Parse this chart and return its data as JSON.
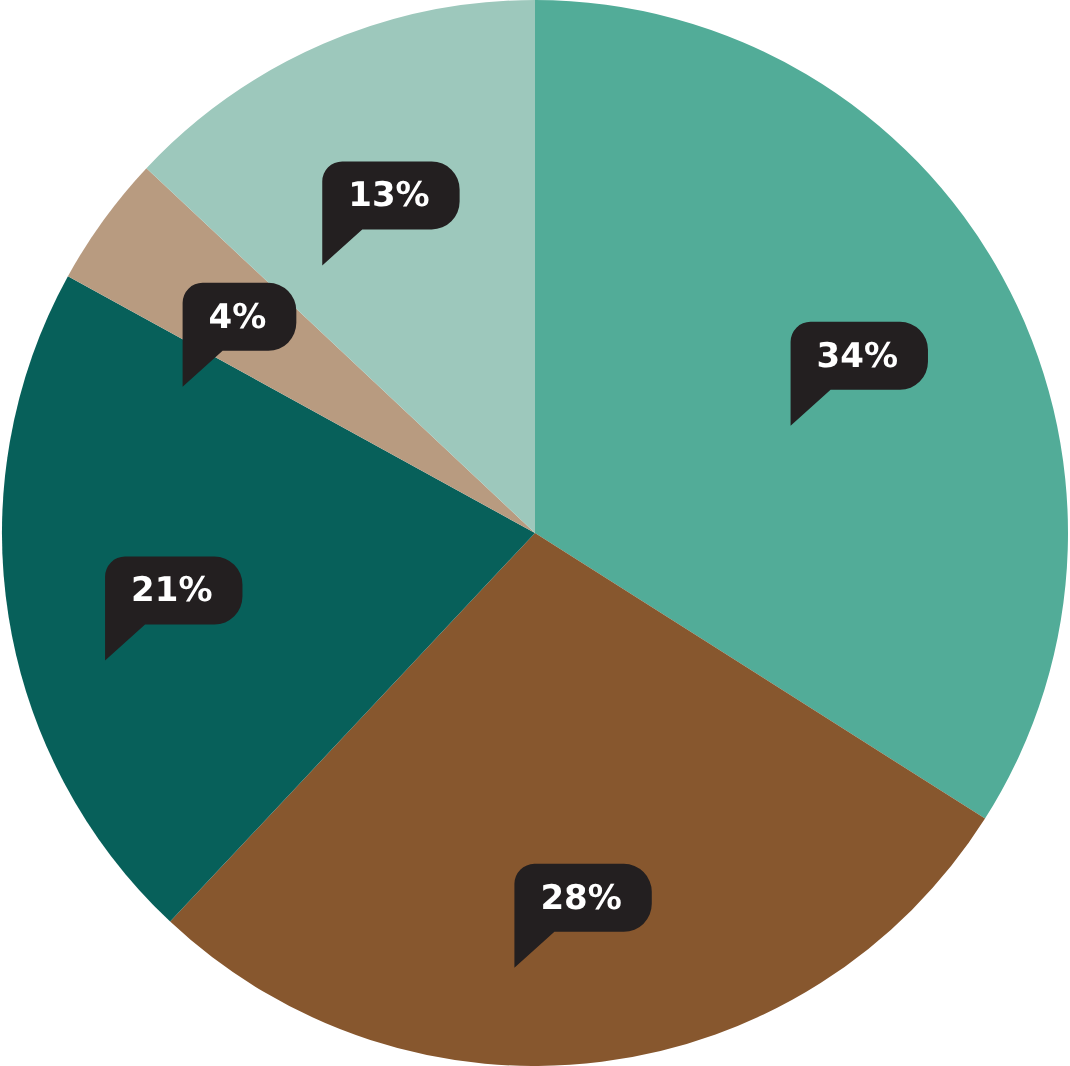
{
  "chart_data": {
    "type": "pie",
    "categories": [
      null,
      null,
      null,
      null,
      null
    ],
    "values": [
      34,
      28,
      21,
      4,
      13
    ],
    "colors": [
      "#52ac98",
      "#87572e",
      "#07605a",
      "#b89b80",
      "#9dc8bc"
    ],
    "value_labels": [
      "34%",
      "28%",
      "21%",
      "4%",
      "13%"
    ],
    "legend": false
  }
}
